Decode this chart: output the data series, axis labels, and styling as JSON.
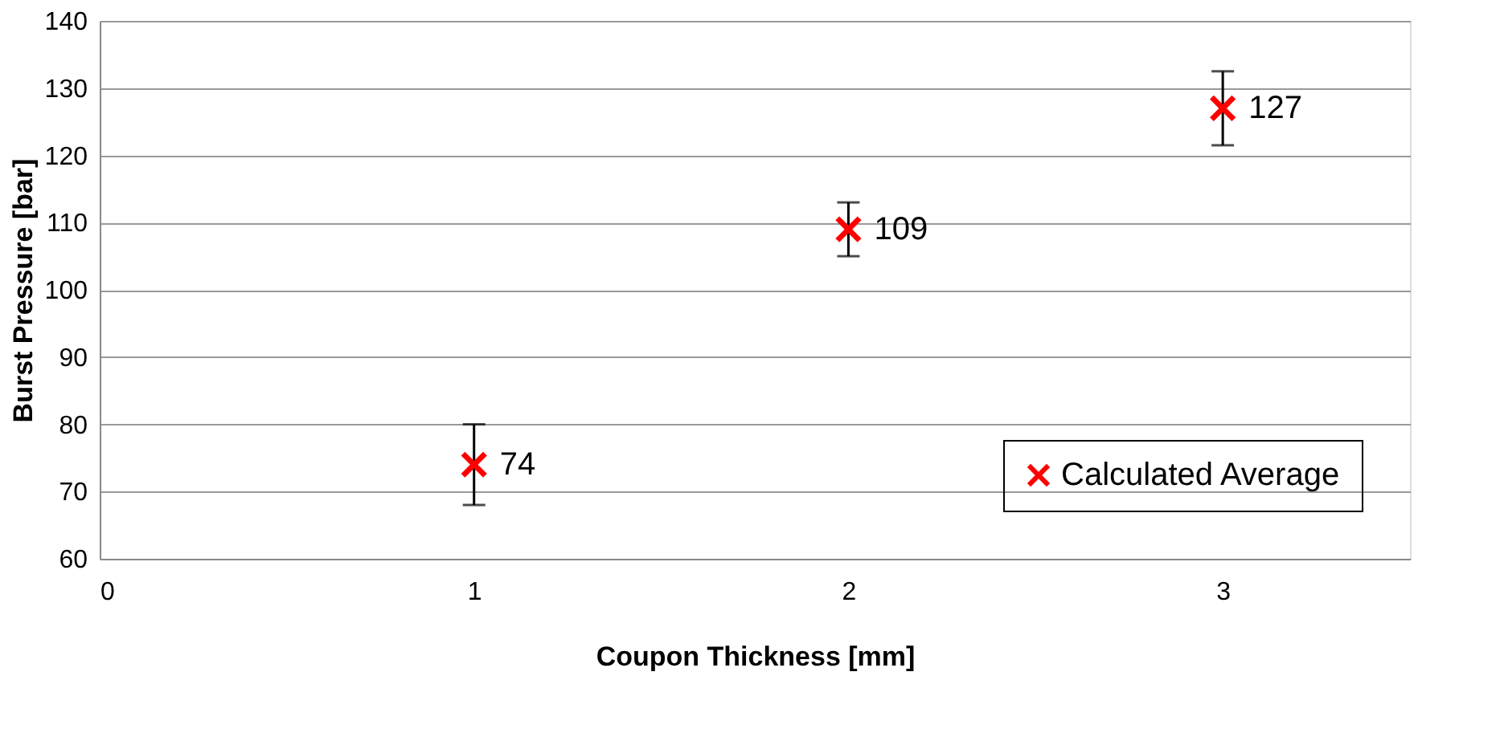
{
  "chart_data": {
    "type": "scatter",
    "xlabel": "Coupon Thickness [mm]",
    "ylabel": "Burst Pressure [bar]",
    "x": [
      1,
      2,
      3
    ],
    "series": [
      {
        "name": "Calculated Average",
        "color": "#ff0000",
        "values": [
          74,
          109,
          127
        ],
        "errors": [
          [
            68,
            80
          ],
          [
            105,
            113
          ],
          [
            121.5,
            132.5
          ]
        ]
      }
    ],
    "xlim": [
      0,
      3.5
    ],
    "xticks": [
      0,
      1,
      2,
      3
    ],
    "ylim": [
      60,
      140
    ],
    "yticks": [
      60,
      70,
      80,
      90,
      100,
      110,
      120,
      130,
      140
    ],
    "grid": "y",
    "legend": "bottom right",
    "marker": "cross",
    "data_labels": true
  }
}
